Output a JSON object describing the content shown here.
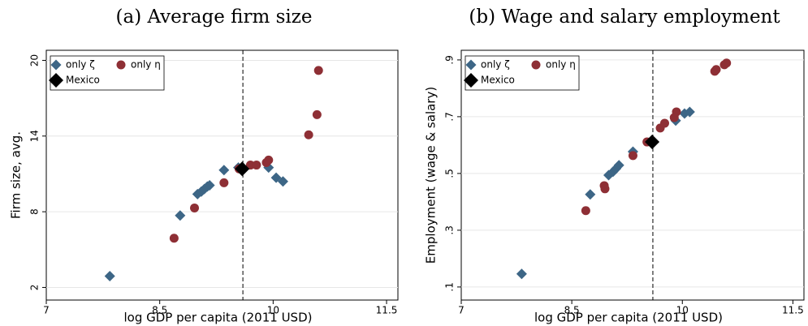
{
  "chart_data": [
    {
      "type": "scatter",
      "title": "(a) Average firm size",
      "x_label": "log GDP per capita (2011 USD)",
      "y_label": "Firm size, avg.",
      "xlim": [
        7,
        11.65
      ],
      "xticks": [
        7,
        8.5,
        10,
        11.5
      ],
      "ylim": [
        1,
        20.8
      ],
      "yticks": [
        2,
        8,
        14,
        20
      ],
      "grid": true,
      "legend": "top-left",
      "vline": 9.6,
      "series": [
        {
          "name": "only ζ",
          "color": "#3d6686",
          "marker": "diamond",
          "x": [
            7.84,
            8.77,
            9.0,
            9.05,
            9.09,
            9.13,
            9.16,
            9.35,
            9.54,
            9.94,
            10.04,
            10.13
          ],
          "y": [
            2.9,
            7.7,
            9.4,
            9.6,
            9.8,
            10.0,
            10.1,
            11.3,
            11.5,
            11.5,
            10.7,
            10.4
          ]
        },
        {
          "name": "only η",
          "color": "#8e2f35",
          "marker": "circle",
          "x": [
            8.69,
            8.96,
            9.35,
            9.55,
            9.7,
            9.78,
            9.91,
            9.94,
            10.47,
            10.58,
            10.6
          ],
          "y": [
            5.9,
            8.3,
            10.3,
            11.4,
            11.7,
            11.7,
            11.9,
            12.1,
            14.1,
            15.7,
            19.2
          ]
        },
        {
          "name": "Mexico",
          "color": "#000000",
          "marker": "big-diamond",
          "x": [
            9.59
          ],
          "y": [
            11.4
          ]
        }
      ]
    },
    {
      "type": "scatter",
      "title": "(b) Wage and salary employment",
      "x_label": "log GDP per capita (2011 USD)",
      "y_label": "Employment (wage & salary)",
      "xlim": [
        7,
        11.65
      ],
      "xticks": [
        7,
        8.5,
        10,
        11.5
      ],
      "ylim": [
        0.054,
        0.934
      ],
      "yticks": [
        {
          "value": 0.1,
          "label": ".1"
        },
        {
          "value": 0.3,
          "label": ".3"
        },
        {
          "value": 0.5,
          "label": ".5"
        },
        {
          "value": 0.7,
          "label": ".7"
        },
        {
          "value": 0.9,
          "label": ".9"
        }
      ],
      "grid": true,
      "legend": "top-left",
      "vline": 9.6,
      "series": [
        {
          "name": "only ζ",
          "color": "#3d6686",
          "marker": "diamond",
          "x": [
            7.82,
            8.75,
            9.0,
            9.06,
            9.1,
            9.14,
            9.33,
            9.91,
            10.03,
            10.1
          ],
          "y": [
            0.146,
            0.426,
            0.494,
            0.506,
            0.517,
            0.529,
            0.577,
            0.686,
            0.711,
            0.717
          ]
        },
        {
          "name": "only η",
          "color": "#8e2f35",
          "marker": "circle",
          "x": [
            8.69,
            8.94,
            8.95,
            9.33,
            9.52,
            9.7,
            9.76,
            9.89,
            9.92,
            10.44,
            10.46,
            10.57,
            10.6
          ],
          "y": [
            0.369,
            0.457,
            0.446,
            0.563,
            0.611,
            0.66,
            0.677,
            0.697,
            0.717,
            0.86,
            0.866,
            0.883,
            0.889
          ]
        },
        {
          "name": "Mexico",
          "color": "#000000",
          "marker": "big-diamond",
          "x": [
            9.59
          ],
          "y": [
            0.611
          ]
        }
      ]
    }
  ]
}
